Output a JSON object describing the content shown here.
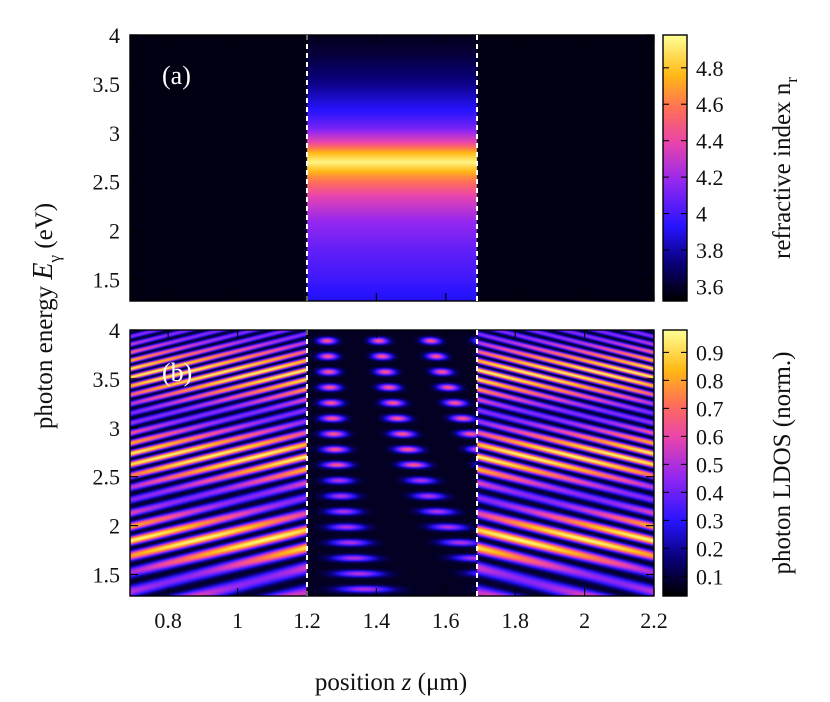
{
  "chart_data": [
    {
      "type": "heatmap",
      "panel_label": "(a)",
      "xlabel_parts": [
        "position ",
        "z",
        " (μm)"
      ],
      "ylabel_parts": [
        "photon energy  ",
        "E",
        "γ",
        " (eV)"
      ],
      "xlim": [
        0.69,
        2.2
      ],
      "ylim": [
        1.28,
        4.0
      ],
      "xticks": [
        "0.8",
        "1",
        "1.2",
        "1.4",
        "1.6",
        "1.8",
        "2",
        "2.2"
      ],
      "xtick_values": [
        0.8,
        1.0,
        1.2,
        1.4,
        1.6,
        1.8,
        2.0,
        2.2
      ],
      "yticks": [
        "1.5",
        "2",
        "2.5",
        "3",
        "3.5",
        "4"
      ],
      "ytick_values": [
        1.5,
        2.0,
        2.5,
        3.0,
        3.5,
        4.0
      ],
      "layer_boundaries": [
        1.2,
        1.69
      ],
      "layer_index_profile": {
        "energy": [
          1.28,
          1.5,
          1.8,
          2.1,
          2.35,
          2.55,
          2.7,
          2.8,
          2.9,
          3.05,
          3.2,
          3.5,
          3.8,
          4.0
        ],
        "n": [
          3.9,
          3.98,
          4.06,
          4.18,
          4.38,
          4.65,
          4.95,
          4.75,
          4.4,
          4.1,
          3.95,
          3.75,
          3.62,
          3.57
        ]
      },
      "background_n": 3.55,
      "colorbar": {
        "label_parts": [
          "refractive index n",
          "r"
        ],
        "range": [
          3.52,
          4.98
        ],
        "ticks": [
          "3.6",
          "3.8",
          "4",
          "4.2",
          "4.4",
          "4.6",
          "4.8"
        ],
        "tick_values": [
          3.6,
          3.8,
          4.0,
          4.2,
          4.4,
          4.6,
          4.8
        ]
      }
    },
    {
      "type": "heatmap",
      "panel_label": "(b)",
      "xlim": [
        0.69,
        2.2
      ],
      "ylim": [
        1.28,
        4.0
      ],
      "xticks": [
        "0.8",
        "1",
        "1.2",
        "1.4",
        "1.6",
        "1.8",
        "2",
        "2.2"
      ],
      "xtick_values": [
        0.8,
        1.0,
        1.2,
        1.4,
        1.6,
        1.8,
        2.0,
        2.2
      ],
      "yticks": [
        "1.5",
        "2",
        "2.5",
        "3",
        "3.5",
        "4"
      ],
      "ytick_values": [
        1.5,
        2.0,
        2.5,
        3.0,
        3.5,
        4.0
      ],
      "layer_boundaries": [
        1.2,
        1.69
      ],
      "colorbar": {
        "label": "photon LDOS (norm.)",
        "range": [
          0.03,
          0.98
        ],
        "ticks": [
          "0.1",
          "0.2",
          "0.3",
          "0.4",
          "0.5",
          "0.6",
          "0.7",
          "0.8",
          "0.9"
        ],
        "tick_values": [
          0.1,
          0.2,
          0.3,
          0.4,
          0.5,
          0.6,
          0.7,
          0.8,
          0.9
        ]
      }
    }
  ]
}
